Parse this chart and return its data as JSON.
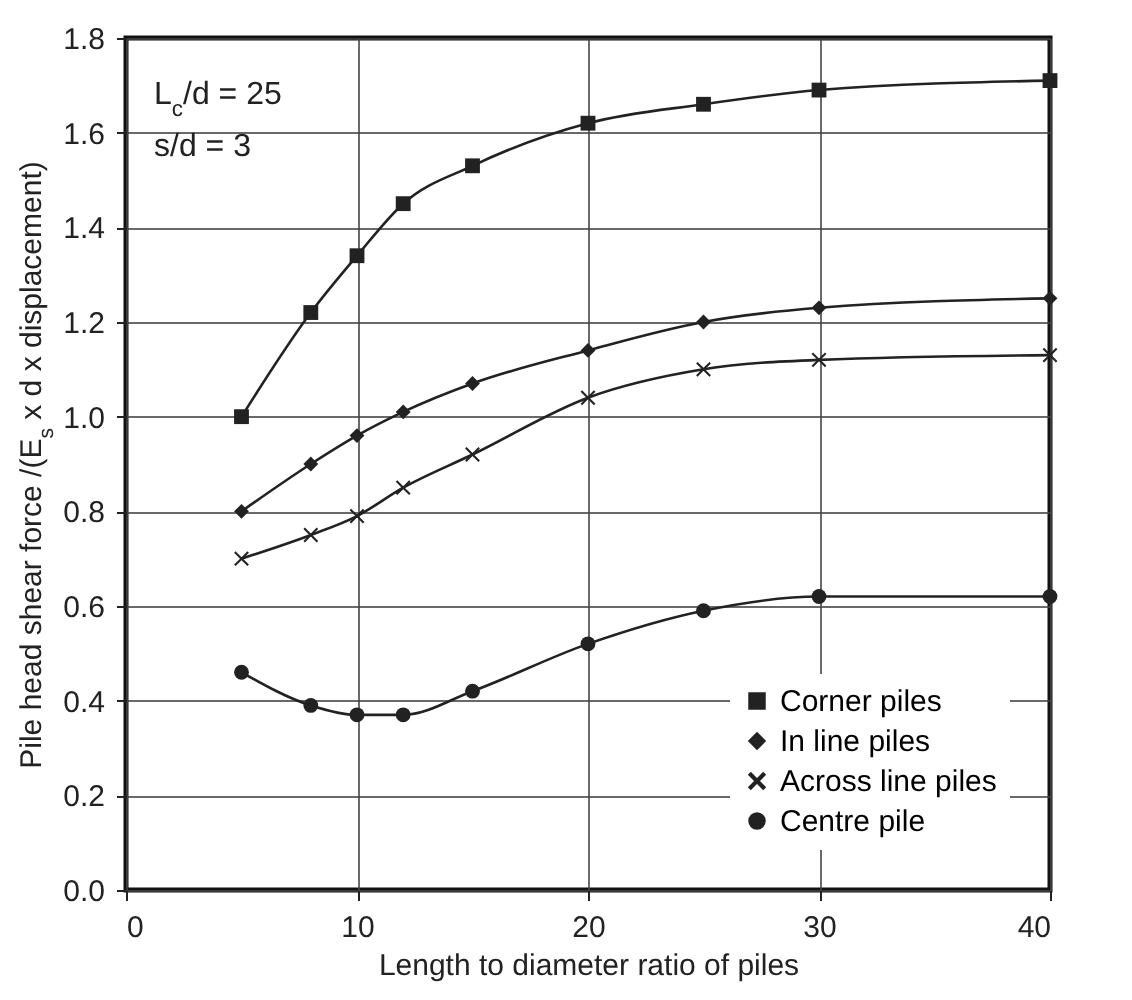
{
  "chart_data": {
    "type": "line",
    "xlabel": "Length to diameter ratio of piles",
    "ylabel": "Pile head shear force /(E$_{s}$ x d x displacement)",
    "x": [
      5,
      8,
      10,
      12,
      15,
      20,
      25,
      30,
      40
    ],
    "series": [
      {
        "name": "Corner piles",
        "color": "#222222",
        "marker": "square",
        "values": [
          1.0,
          1.22,
          1.34,
          1.45,
          1.53,
          1.62,
          1.66,
          1.69,
          1.71
        ]
      },
      {
        "name": "In line piles",
        "color": "#222222",
        "marker": "diamond",
        "values": [
          0.8,
          0.9,
          0.96,
          1.01,
          1.07,
          1.14,
          1.2,
          1.23,
          1.25
        ]
      },
      {
        "name": "Across line piles",
        "color": "#222222",
        "marker": "cross",
        "values": [
          0.7,
          0.75,
          0.79,
          0.85,
          0.92,
          1.04,
          1.1,
          1.12,
          1.13
        ]
      },
      {
        "name": "Centre pile",
        "color": "#222222",
        "marker": "circle",
        "values": [
          0.46,
          0.39,
          0.37,
          0.37,
          0.42,
          0.52,
          0.59,
          0.62,
          0.62
        ]
      }
    ],
    "xlim": [
      0,
      40
    ],
    "xticks": [
      0,
      10,
      20,
      30,
      40
    ],
    "ylim": [
      0,
      1.8
    ],
    "yticks": [
      {
        "value": 0,
        "label": "0.0"
      },
      0.2,
      0.4,
      0.6,
      0.8,
      {
        "value": 1,
        "label": "1.0"
      },
      1.2,
      1.4,
      1.6,
      1.8
    ],
    "annotations": [
      "L$_{c}$/d = 25",
      "s/d  =  3"
    ],
    "grid": true,
    "legend": "bottom right",
    "line_style": "solid"
  }
}
